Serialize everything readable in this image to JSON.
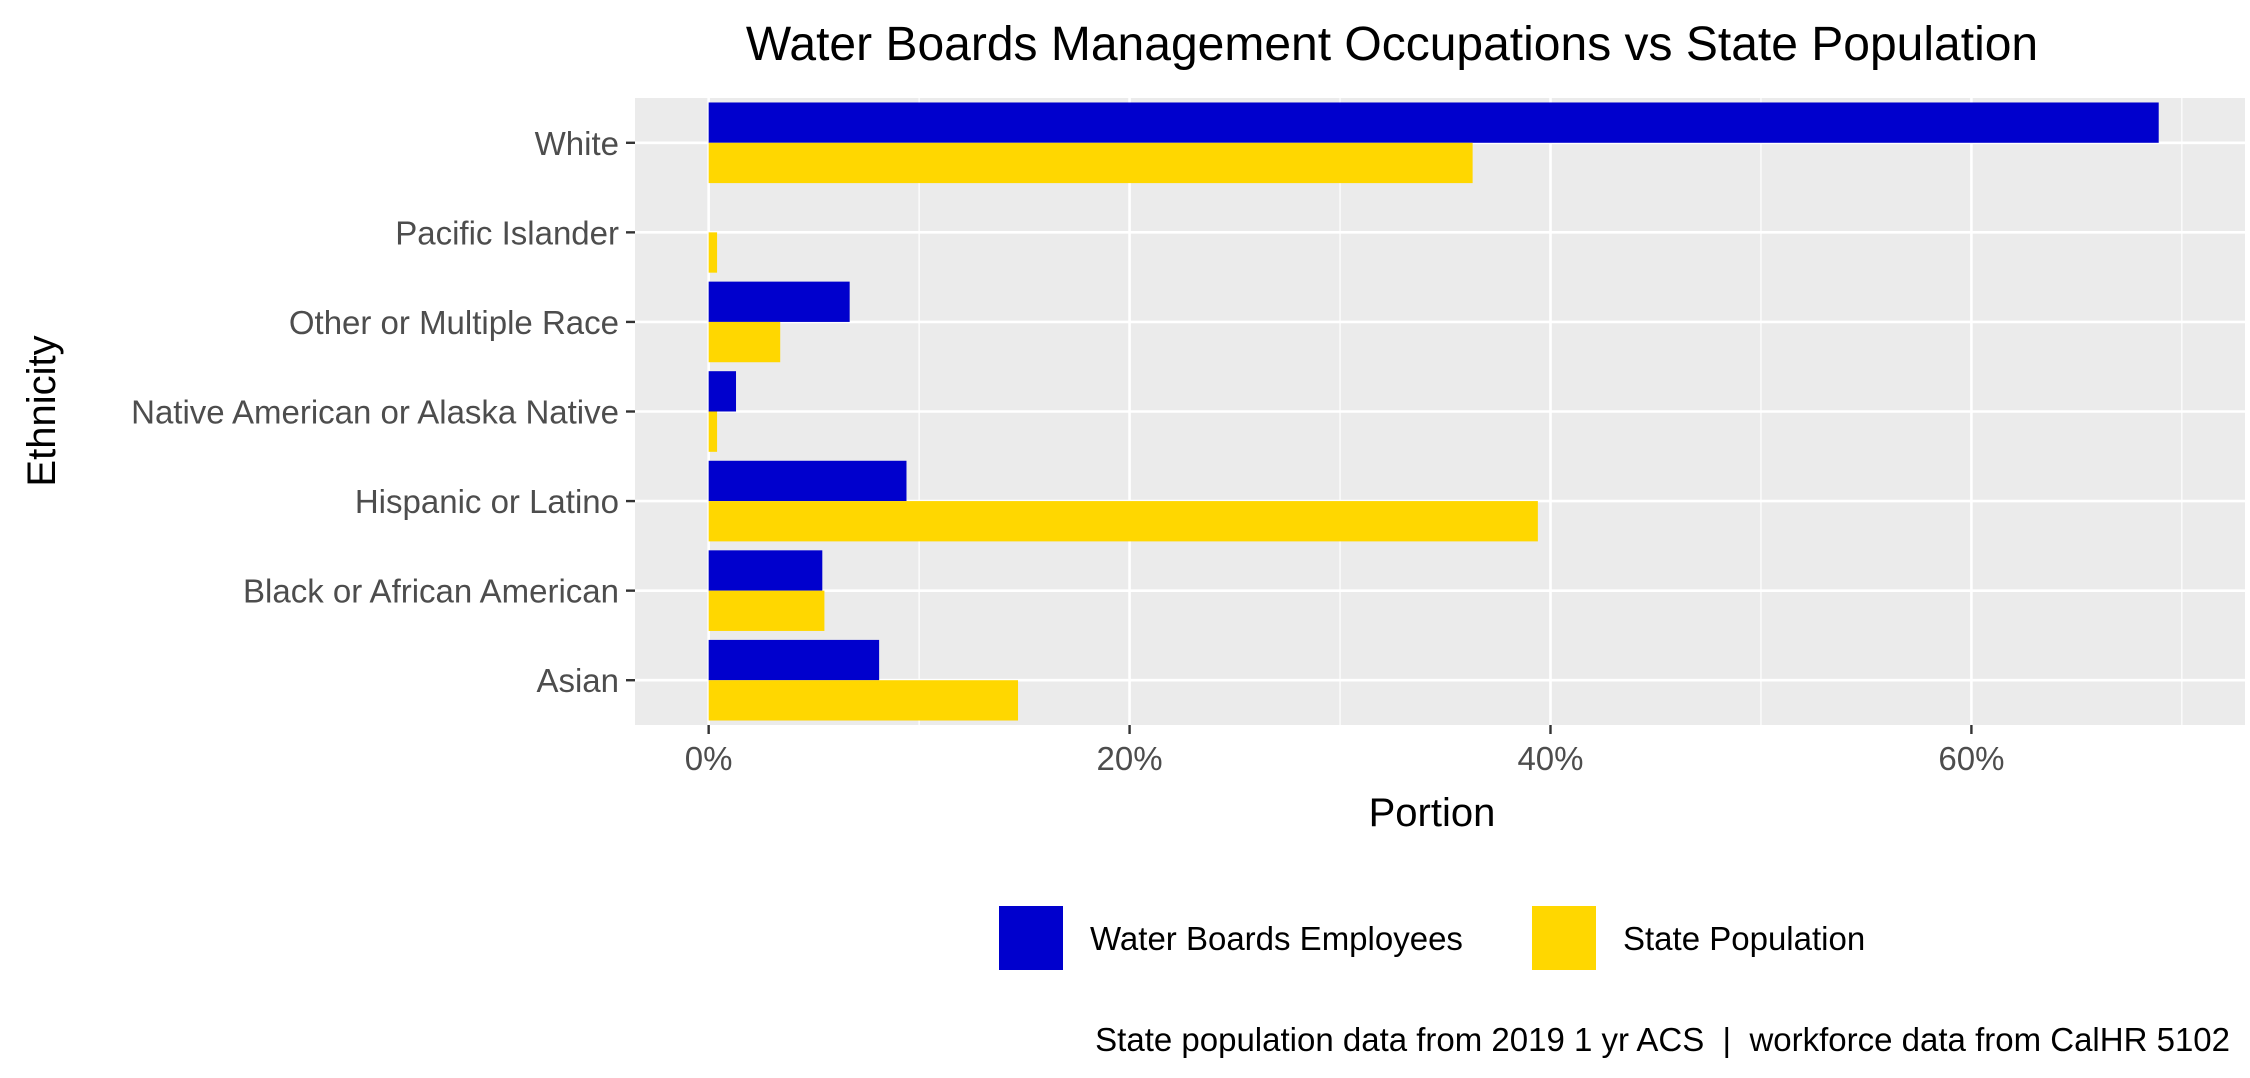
{
  "chart_data": {
    "type": "bar",
    "orientation": "horizontal",
    "title": "Water Boards Management Occupations vs State Population",
    "xlabel": "Portion",
    "ylabel": "Ethnicity",
    "categories": [
      "Asian",
      "Black or African American",
      "Hispanic or Latino",
      "Native American or Alaska Native",
      "Other or Multiple Race",
      "Pacific Islander",
      "White"
    ],
    "series": [
      {
        "name": "Water Boards Employees",
        "color": "#0000CD",
        "values": [
          0.081,
          0.054,
          0.094,
          0.013,
          0.067,
          0.0,
          0.689
        ]
      },
      {
        "name": "State Population",
        "color": "#FFD700",
        "values": [
          0.147,
          0.055,
          0.394,
          0.004,
          0.034,
          0.004,
          0.363
        ]
      }
    ],
    "xlim": [
      -0.035,
      0.73
    ],
    "x_ticks": [
      0,
      0.2,
      0.4,
      0.6
    ],
    "x_tick_labels": [
      "0%",
      "20%",
      "40%",
      "60%"
    ],
    "grid": true,
    "legend_position": "bottom",
    "caption": "State population data from 2019 1 yr ACS  |  workforce data from CalHR 5102"
  }
}
